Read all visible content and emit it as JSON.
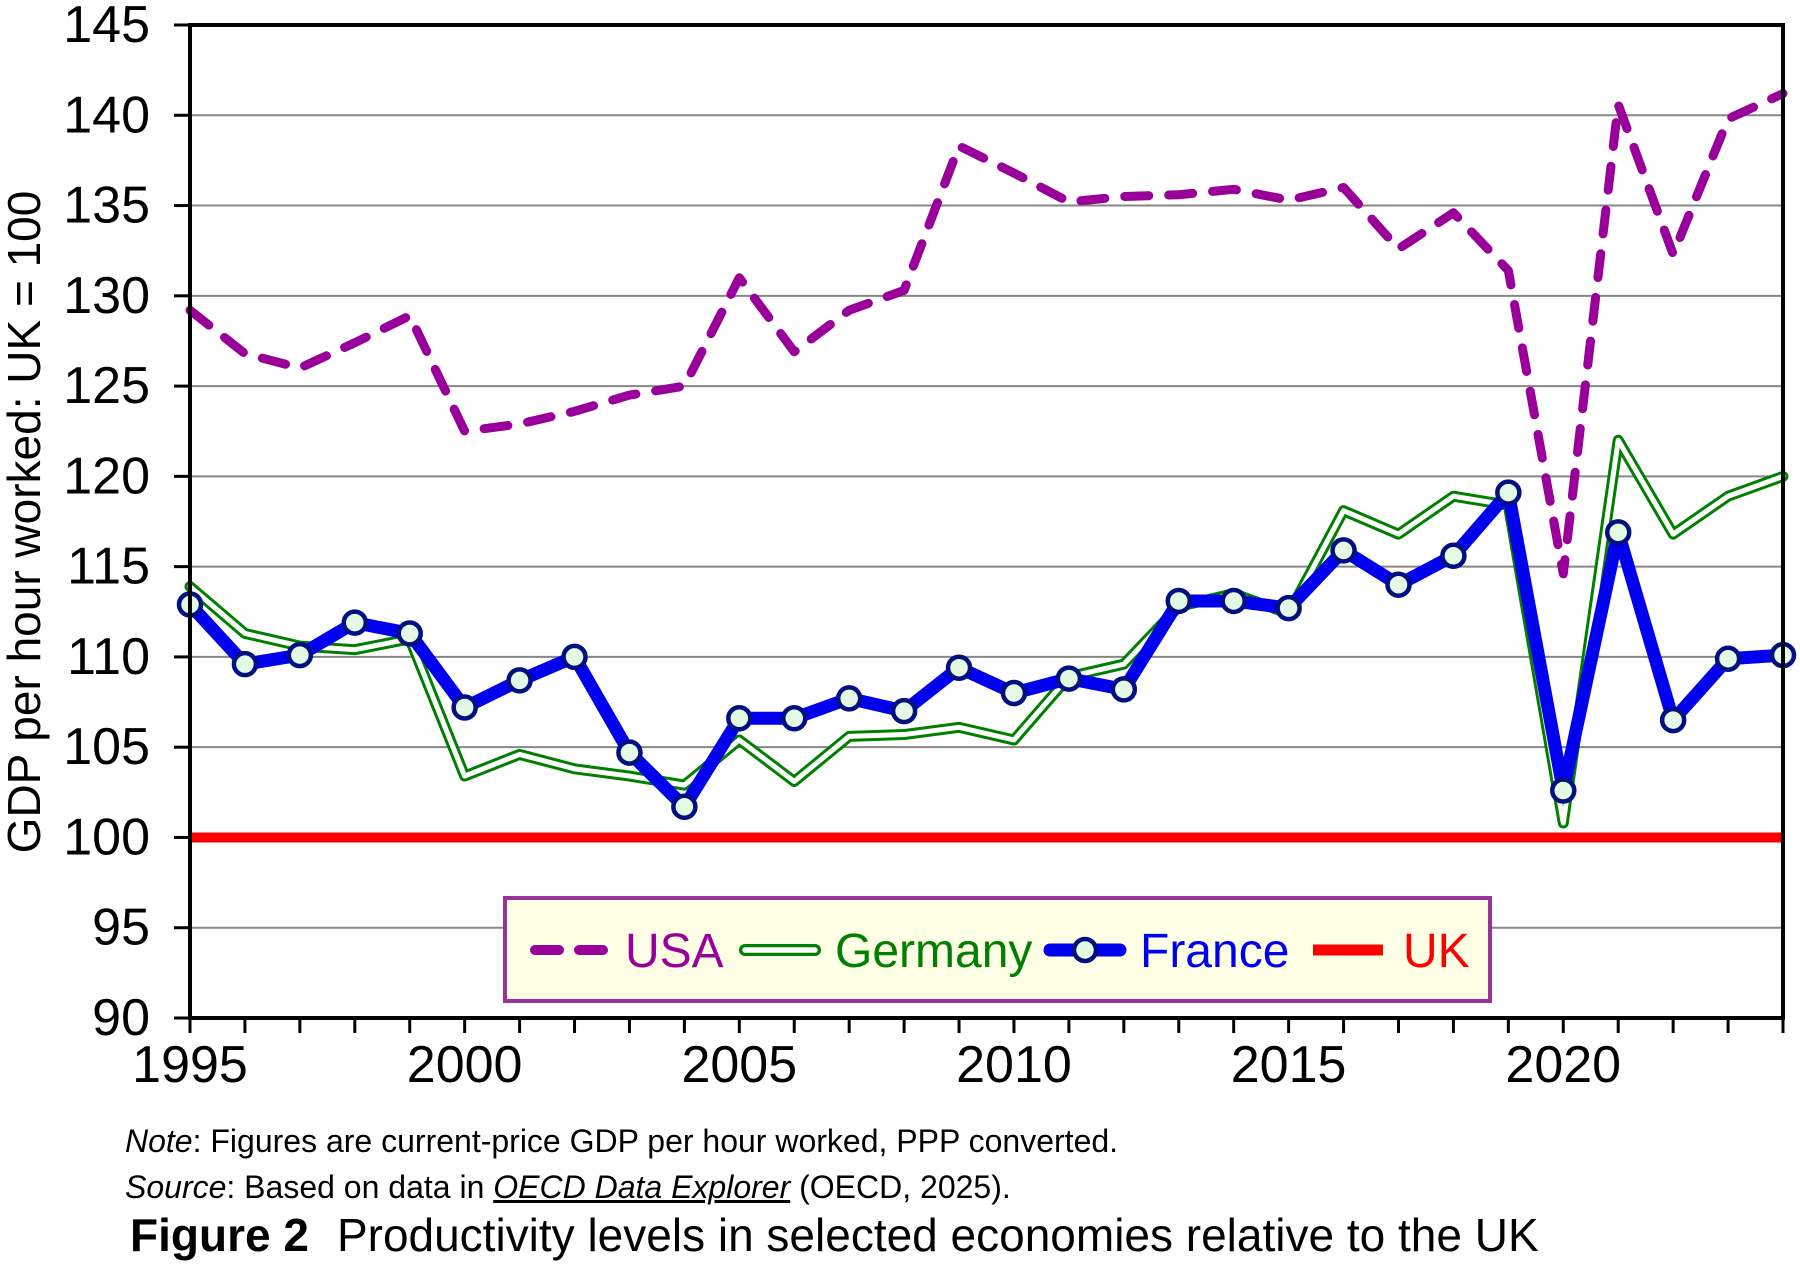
{
  "page": {
    "background": "#ffffff"
  },
  "y_axis": {
    "title": "GDP per hour worked: UK = 100",
    "min": 90,
    "max": 145,
    "step": 5,
    "tick_labels": [
      "90",
      "95",
      "100",
      "105",
      "110",
      "115",
      "120",
      "125",
      "130",
      "135",
      "140",
      "145"
    ]
  },
  "x_axis": {
    "min": 1995,
    "max": 2024,
    "label_years": [
      "1995",
      "2000",
      "2005",
      "2010",
      "2015",
      "2020"
    ]
  },
  "legend": {
    "background": "#FFFFE5",
    "border_color": "#993399",
    "entries": [
      {
        "id": "usa",
        "label": "USA",
        "color": "#990099"
      },
      {
        "id": "germany",
        "label": "Germany",
        "color": "#007F00"
      },
      {
        "id": "france",
        "label": "France",
        "color": "#0000EE"
      },
      {
        "id": "uk",
        "label": "UK",
        "color": "#FF0000"
      }
    ]
  },
  "chart_data": {
    "type": "line",
    "title": "",
    "xlabel": "",
    "ylabel": "GDP per hour worked: UK = 100",
    "ylim": [
      90,
      145
    ],
    "grid": true,
    "legend_position": "bottom-inside",
    "x": [
      1995,
      1996,
      1997,
      1998,
      1999,
      2000,
      2001,
      2002,
      2003,
      2004,
      2005,
      2006,
      2007,
      2008,
      2009,
      2010,
      2011,
      2012,
      2013,
      2014,
      2015,
      2016,
      2017,
      2018,
      2019,
      2020,
      2021,
      2022,
      2023,
      2024
    ],
    "series": [
      {
        "name": "USA",
        "color": "#990099",
        "style": "dashed",
        "values": [
          129.2,
          126.8,
          126.0,
          127.4,
          128.9,
          122.5,
          122.9,
          123.6,
          124.5,
          125.0,
          131.0,
          126.9,
          129.2,
          130.3,
          138.3,
          136.8,
          135.2,
          135.5,
          135.6,
          135.9,
          135.3,
          136.0,
          132.6,
          134.6,
          131.4,
          114.6,
          140.6,
          132.3,
          139.8,
          141.2
        ]
      },
      {
        "name": "Germany",
        "color": "#007F00",
        "style": "double-line",
        "values": [
          113.9,
          111.3,
          110.6,
          110.4,
          111.0,
          103.4,
          104.6,
          103.8,
          103.4,
          102.9,
          105.4,
          103.1,
          105.6,
          105.7,
          106.1,
          105.4,
          108.9,
          109.6,
          112.8,
          113.5,
          112.4,
          118.1,
          116.8,
          118.9,
          118.4,
          100.8,
          122.0,
          116.8,
          118.9,
          120.0
        ]
      },
      {
        "name": "France",
        "color": "#0000EE",
        "style": "solid-markers",
        "marker_fill": "#E4FAE4",
        "marker_edge": "#001080",
        "values": [
          112.9,
          109.6,
          110.1,
          111.9,
          111.3,
          107.2,
          108.7,
          110.0,
          104.7,
          101.7,
          106.6,
          106.6,
          107.7,
          107.0,
          109.4,
          108.0,
          108.8,
          108.2,
          113.1,
          113.1,
          112.7,
          115.9,
          114.0,
          115.6,
          119.1,
          102.6,
          116.9,
          106.5,
          109.9,
          110.1
        ]
      },
      {
        "name": "UK",
        "color": "#FF0000",
        "style": "solid",
        "values": [
          100,
          100,
          100,
          100,
          100,
          100,
          100,
          100,
          100,
          100,
          100,
          100,
          100,
          100,
          100,
          100,
          100,
          100,
          100,
          100,
          100,
          100,
          100,
          100,
          100,
          100,
          100,
          100,
          100,
          100
        ]
      }
    ]
  },
  "note": {
    "label": "Note",
    "text": ": Figures are current-price GDP per hour worked, PPP converted."
  },
  "source": {
    "label": "Source",
    "prefix": ": Based on data in ",
    "link": "OECD Data Explorer",
    "suffix": " (OECD, 2025)."
  },
  "caption": {
    "figure_label": "Figure 2",
    "figure_title": "Productivity levels in selected economies relative to the UK"
  }
}
